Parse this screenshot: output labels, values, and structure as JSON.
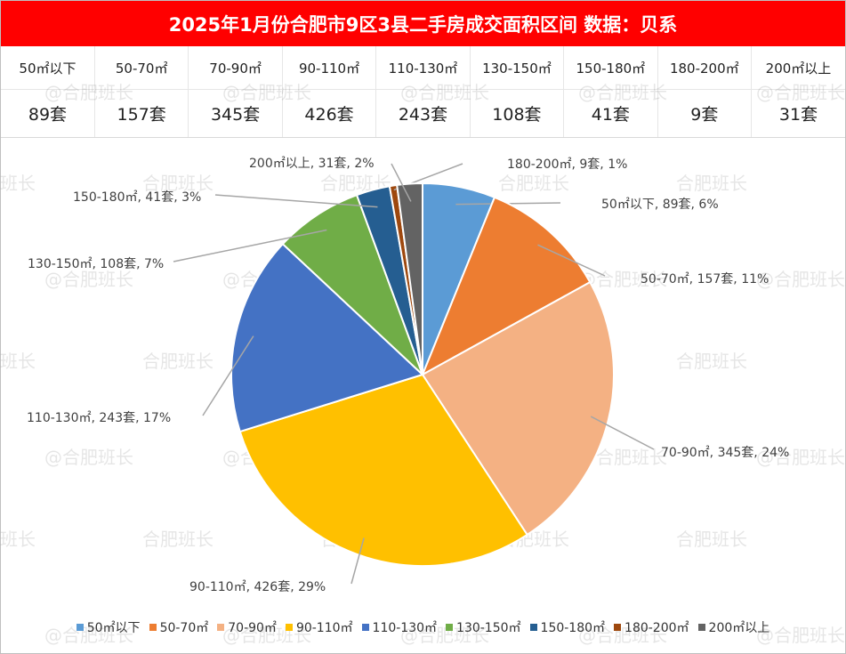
{
  "title": "2025年1月份合肥市9区3县二手房成交面积区间 数据：贝系",
  "watermark": "@合肥班长",
  "chart_data": {
    "type": "pie",
    "title": "2025年1月份合肥市9区3县二手房成交面积区间 数据：贝系",
    "categories": [
      "50㎡以下",
      "50-70㎡",
      "70-90㎡",
      "90-110㎡",
      "110-130㎡",
      "130-150㎡",
      "150-180㎡",
      "180-200㎡",
      "200㎡以上"
    ],
    "values": [
      89,
      157,
      345,
      426,
      243,
      108,
      41,
      9,
      31
    ],
    "value_labels": [
      "89套",
      "157套",
      "345套",
      "426套",
      "243套",
      "108套",
      "41套",
      "9套",
      "31套"
    ],
    "slice_labels": [
      "50㎡以下, 89套, 6%",
      "50-70㎡, 157套, 11%",
      "70-90㎡, 345套, 24%",
      "90-110㎡, 426套, 29%",
      "110-130㎡, 243套, 17%",
      "130-150㎡, 108套, 7%",
      "150-180㎡, 41套, 3%",
      "180-200㎡, 9套, 1%",
      "200㎡以上, 31套, 2%"
    ],
    "colors": [
      "#5b9bd5",
      "#ed7d31",
      "#f4b183",
      "#ffc000",
      "#4472c4",
      "#70ad47",
      "#255e91",
      "#9e480e",
      "#636363"
    ],
    "legend_position": "bottom"
  }
}
